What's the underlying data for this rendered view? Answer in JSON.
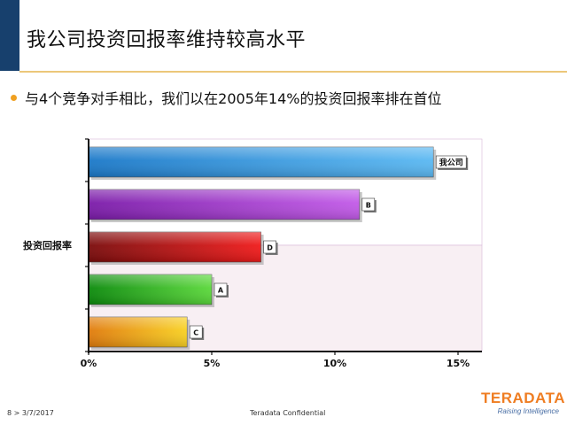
{
  "slide": {
    "title": "我公司投资回报率维持较高水平",
    "bullet": "与4个竞争对手相比，我们以在2005年14%的投资回报率排在首位"
  },
  "footer": {
    "page_date": "8  >  3/7/2017",
    "confidential": "Teradata Confidential"
  },
  "logo": {
    "name": "TERADATA",
    "tagline": "Raising Intelligence"
  },
  "colors": {
    "title_accent": "#17406d",
    "rule": "#ecc77a",
    "bullet": "#f0a020",
    "logo": "#ef7d22"
  },
  "chart_data": {
    "type": "bar",
    "orientation": "horizontal",
    "ylabel": "投资回报率",
    "xlim": [
      0,
      15
    ],
    "x_ticks": [
      "0%",
      "5%",
      "10%",
      "15%"
    ],
    "x_tick_values": [
      0,
      5,
      10,
      15
    ],
    "grid": false,
    "categories": [
      "我公司",
      "B",
      "D",
      "A",
      "C"
    ],
    "values": [
      14,
      11,
      7,
      5,
      4
    ],
    "bar_colors": [
      [
        "#1a78c8",
        "#5ab8f2"
      ],
      [
        "#7a1aa8",
        "#c25ae8"
      ],
      [
        "#7a0a0a",
        "#f01a1a"
      ],
      [
        "#0a8a0a",
        "#5ad83a"
      ],
      [
        "#e07a0a",
        "#f8d020"
      ]
    ]
  }
}
